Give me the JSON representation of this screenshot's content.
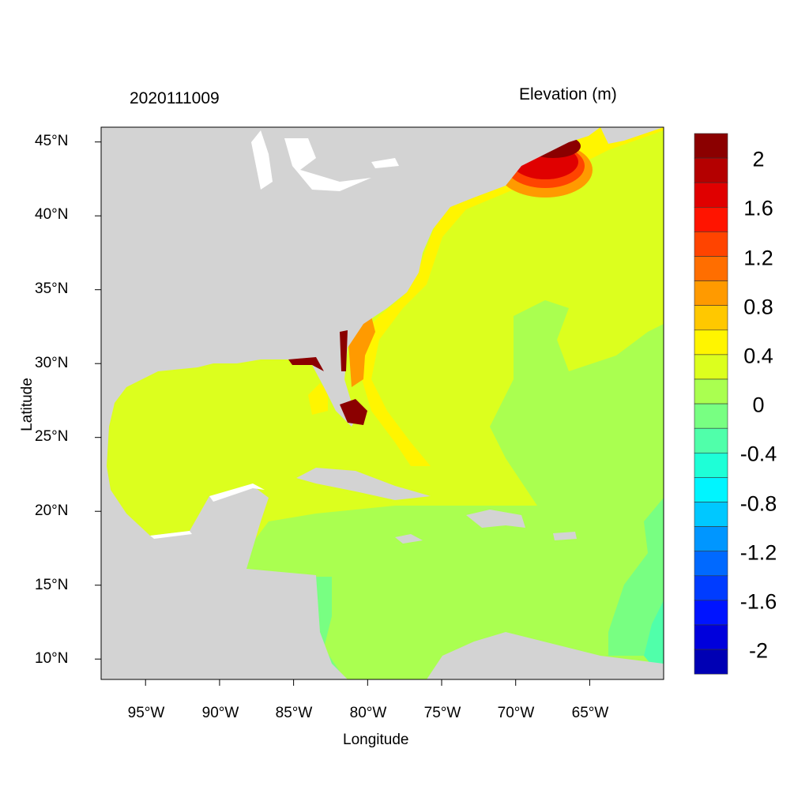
{
  "header": {
    "date_label": "2020111009",
    "variable_label": "Elevation (m)"
  },
  "axes": {
    "xlabel": "Longitude",
    "ylabel": "Latitude",
    "x_ticks": [
      "95°W",
      "90°W",
      "85°W",
      "80°W",
      "75°W",
      "70°W",
      "65°W"
    ],
    "y_ticks": [
      "45°N",
      "40°N",
      "35°N",
      "30°N",
      "25°N",
      "20°N",
      "15°N",
      "10°N"
    ]
  },
  "chart_data": {
    "type": "heatmap",
    "title": "2020111009",
    "subtitle": "Elevation (m)",
    "xlabel": "Longitude",
    "ylabel": "Latitude",
    "x_tick_values": [
      -95,
      -90,
      -85,
      -80,
      -75,
      -70,
      -65
    ],
    "y_tick_values": [
      45,
      40,
      35,
      30,
      25,
      20,
      15,
      10
    ],
    "xlim": [
      -98,
      -60
    ],
    "ylim": [
      8.5,
      46
    ],
    "land_color": "#d3d3d3",
    "colorbar": {
      "labels": [
        "2",
        "1.6",
        "1.2",
        "0.8",
        "0.4",
        "0",
        "-0.4",
        "-0.8",
        "-1.2",
        "-1.6",
        "-2"
      ],
      "levels_top_to_bottom": [
        2.2,
        2.0,
        1.8,
        1.6,
        1.4,
        1.2,
        1.0,
        0.8,
        0.6,
        0.4,
        0.2,
        0.0,
        -0.2,
        -0.4,
        -0.6,
        -0.8,
        -1.0,
        -1.2,
        -1.4,
        -1.6,
        -1.8,
        -2.0,
        -2.2
      ],
      "colors_top_to_bottom": [
        "#8b0000",
        "#b40000",
        "#e00000",
        "#ff1400",
        "#ff4400",
        "#ff6e00",
        "#ff9a00",
        "#ffc800",
        "#fff500",
        "#dcff1e",
        "#aaff50",
        "#78ff82",
        "#50ffaa",
        "#1effd7",
        "#00f5ff",
        "#00c8ff",
        "#0096ff",
        "#0069ff",
        "#003cff",
        "#0014ff",
        "#0000dc",
        "#0000b4"
      ]
    },
    "regions": [
      {
        "area": "Gulf of Mexico and western Atlantic",
        "range": "0.2 to 0.4",
        "color": "#dcff1e"
      },
      {
        "area": "Caribbean Sea and central Atlantic",
        "range": "0 to 0.2",
        "color": "#aaff50"
      },
      {
        "area": "Gulf of Maine",
        "range": "0.6 to >2.2",
        "color": "#8b0000"
      },
      {
        "area": "South Florida coast",
        "range": ">2.2",
        "color": "#8b0000"
      },
      {
        "area": "Georgia coast",
        "range": "0.6 to 1.0",
        "color": "#ff9a00"
      },
      {
        "area": "Eastern Caribbean edge",
        "range": "-0.2 to 0",
        "color": "#78ff82"
      }
    ]
  }
}
